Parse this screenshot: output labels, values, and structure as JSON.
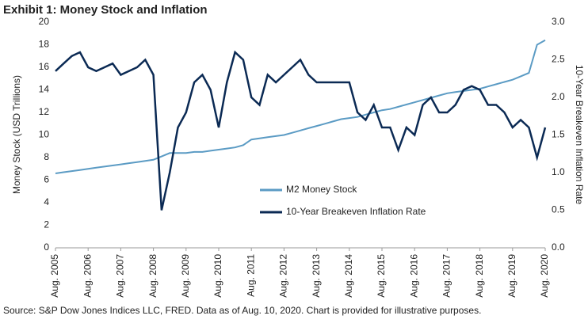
{
  "chart_data": {
    "type": "line",
    "title": "Exhibit 1: Money Stock and Inflation",
    "source": "Source: S&P Dow Jones Indices LLC, FRED. Data as of Aug. 10, 2020. Chart is provided for illustrative purposes.",
    "ylabel": "Money Stock (USD Trillions)",
    "y2label": "10-Year Breakeven Inflation Rate",
    "x": [
      "2005-08",
      "2005-11",
      "2006-02",
      "2006-05",
      "2006-08",
      "2006-11",
      "2007-02",
      "2007-05",
      "2007-08",
      "2007-11",
      "2008-02",
      "2008-05",
      "2008-08",
      "2008-11",
      "2009-02",
      "2009-05",
      "2009-08",
      "2009-11",
      "2010-02",
      "2010-05",
      "2010-08",
      "2010-11",
      "2011-02",
      "2011-05",
      "2011-08",
      "2011-11",
      "2012-02",
      "2012-05",
      "2012-08",
      "2012-11",
      "2013-02",
      "2013-05",
      "2013-08",
      "2013-11",
      "2014-02",
      "2014-05",
      "2014-08",
      "2014-11",
      "2015-02",
      "2015-05",
      "2015-08",
      "2015-11",
      "2016-02",
      "2016-05",
      "2016-08",
      "2016-11",
      "2017-02",
      "2017-05",
      "2017-08",
      "2017-11",
      "2018-02",
      "2018-05",
      "2018-08",
      "2018-11",
      "2019-02",
      "2019-05",
      "2019-08",
      "2019-11",
      "2020-02",
      "2020-05",
      "2020-08"
    ],
    "series": [
      {
        "name": "M2 Money Stock",
        "color": "#5b9bc4",
        "values": [
          6.6,
          6.7,
          6.8,
          6.9,
          7.0,
          7.1,
          7.2,
          7.3,
          7.4,
          7.5,
          7.6,
          7.7,
          7.8,
          8.1,
          8.4,
          8.4,
          8.4,
          8.5,
          8.5,
          8.6,
          8.7,
          8.8,
          8.9,
          9.1,
          9.6,
          9.7,
          9.8,
          9.9,
          10.0,
          10.2,
          10.4,
          10.6,
          10.8,
          11.0,
          11.2,
          11.4,
          11.5,
          11.6,
          11.8,
          12.0,
          12.2,
          12.3,
          12.5,
          12.7,
          12.9,
          13.1,
          13.3,
          13.5,
          13.7,
          13.8,
          13.9,
          14.0,
          14.1,
          14.3,
          14.5,
          14.7,
          14.9,
          15.2,
          15.5,
          18.0,
          18.4
        ]
      },
      {
        "name": "10-Year Breakeven Inflation Rate",
        "color": "#0b2a54",
        "axis": "y2",
        "values": [
          2.35,
          2.45,
          2.55,
          2.6,
          2.4,
          2.35,
          2.4,
          2.45,
          2.3,
          2.35,
          2.4,
          2.5,
          2.3,
          0.5,
          1.0,
          1.6,
          1.8,
          2.2,
          2.3,
          2.1,
          1.6,
          2.2,
          2.6,
          2.5,
          2.0,
          1.9,
          2.3,
          2.2,
          2.3,
          2.4,
          2.5,
          2.3,
          2.2,
          2.2,
          2.2,
          2.2,
          2.2,
          1.8,
          1.7,
          1.9,
          1.6,
          1.6,
          1.3,
          1.6,
          1.5,
          1.9,
          2.0,
          1.8,
          1.8,
          1.9,
          2.1,
          2.15,
          2.1,
          1.9,
          1.9,
          1.8,
          1.6,
          1.7,
          1.6,
          1.2,
          1.6
        ]
      }
    ],
    "xticks": [
      {
        "value": "2005-08",
        "label": "Aug. 2005"
      },
      {
        "value": "2006-08",
        "label": "Aug. 2006"
      },
      {
        "value": "2007-08",
        "label": "Aug. 2007"
      },
      {
        "value": "2008-08",
        "label": "Aug. 2008"
      },
      {
        "value": "2009-08",
        "label": "Aug. 2009"
      },
      {
        "value": "2010-08",
        "label": "Aug. 2010"
      },
      {
        "value": "2011-08",
        "label": "Aug. 2011"
      },
      {
        "value": "2012-08",
        "label": "Aug. 2012"
      },
      {
        "value": "2013-08",
        "label": "Aug. 2013"
      },
      {
        "value": "2014-08",
        "label": "Aug. 2014"
      },
      {
        "value": "2015-08",
        "label": "Aug. 2015"
      },
      {
        "value": "2016-08",
        "label": "Aug. 2016"
      },
      {
        "value": "2017-08",
        "label": "Aug. 2017"
      },
      {
        "value": "2018-08",
        "label": "Aug. 2018"
      },
      {
        "value": "2019-08",
        "label": "Aug. 2019"
      },
      {
        "value": "2020-08",
        "label": "Aug. 2020"
      }
    ],
    "ylim": [
      0,
      20
    ],
    "yticks": [
      0,
      2,
      4,
      6,
      8,
      10,
      12,
      14,
      16,
      18,
      20
    ],
    "y2lim": [
      0,
      3
    ],
    "y2ticks": [
      {
        "value": 0,
        "label": "0.0"
      },
      0.5,
      {
        "value": 1,
        "label": "1.0"
      },
      1.5,
      {
        "value": 2,
        "label": "2.0"
      },
      2.5,
      {
        "value": 3,
        "label": "3.0"
      }
    ]
  }
}
